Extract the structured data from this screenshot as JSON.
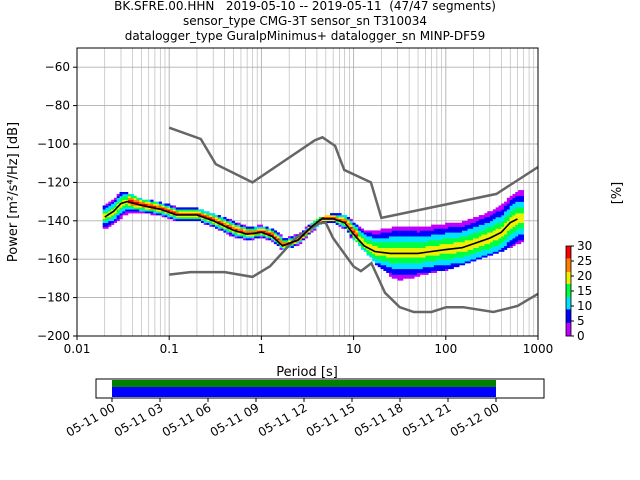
{
  "header": {
    "title_line1": "BK.SFRE.00.HHN   2019-05-10 -- 2019-05-11  (47/47 segments)",
    "title_line2": "sensor_type CMG-3T sensor_sn T310034",
    "title_line3": "datalogger_type GuralpMinimus+ datalogger_sn MINP-DF59"
  },
  "colorbar": {
    "label": "[%]",
    "ticks": [
      "0",
      "5",
      "10",
      "15",
      "20",
      "25",
      "30"
    ],
    "colors": [
      "#ffffff",
      "#c000ff",
      "#0000ff",
      "#00e0ff",
      "#00ff40",
      "#f0f000",
      "#ff8000",
      "#ff0000",
      "#b00000"
    ]
  },
  "chart_data": {
    "type": "heatmap",
    "title": "",
    "xlabel": "Period [s]",
    "ylabel": "Power [m²/s⁴/Hz] [dB]",
    "xscale": "log",
    "xlim": [
      0.01,
      1000
    ],
    "ylim": [
      -200,
      -50
    ],
    "grid": true,
    "x_ticks": [
      "0.01",
      "0.1",
      "1",
      "10",
      "100",
      "1000"
    ],
    "y_ticks": [
      "−60",
      "−80",
      "−100",
      "−120",
      "−140",
      "−160",
      "−180",
      "−200"
    ],
    "y_tick_values": [
      -60,
      -80,
      -100,
      -120,
      -140,
      -160,
      -180,
      -200
    ],
    "x_tick_values": [
      0.01,
      0.1,
      1,
      10,
      100,
      1000
    ],
    "mean_curve": {
      "period": [
        0.02,
        0.025,
        0.03,
        0.035,
        0.05,
        0.08,
        0.12,
        0.2,
        0.3,
        0.5,
        0.7,
        1.0,
        1.3,
        1.7,
        2.5,
        3.5,
        4.5,
        6,
        8,
        10,
        13,
        17,
        25,
        35,
        50,
        70,
        100,
        150,
        200,
        300,
        400,
        500,
        600
      ],
      "power": [
        -138,
        -135,
        -131,
        -130,
        -132,
        -134,
        -137,
        -137,
        -140,
        -145,
        -147,
        -146,
        -148,
        -153,
        -150,
        -143,
        -139,
        -139,
        -141,
        -147,
        -153,
        -156,
        -157,
        -157,
        -157,
        -156,
        -155,
        -154,
        -152,
        -149,
        -146,
        -141,
        -139
      ]
    },
    "nhnm": {
      "period": [
        0.1,
        0.22,
        0.32,
        0.8,
        3.8,
        4.6,
        6.3,
        7.9,
        15.4,
        20,
        354.8,
        1000
      ],
      "power": [
        -91.5,
        -97.4,
        -110.5,
        -120,
        -98,
        -96.5,
        -101,
        -113.5,
        -120,
        -138.5,
        -126,
        -112
      ]
    },
    "nlnm": {
      "period": [
        0.1,
        0.17,
        0.4,
        0.8,
        1.24,
        2.4,
        4.3,
        5,
        6,
        10,
        12,
        15.6,
        21.9,
        31.6,
        45,
        70,
        101,
        154,
        328,
        600,
        1000
      ],
      "power": [
        -168,
        -166.7,
        -166.7,
        -169.2,
        -163.7,
        -148.6,
        -141.1,
        -141.1,
        -149,
        -163.8,
        -166.2,
        -162.1,
        -177.5,
        -185,
        -187.5,
        -187.5,
        -185,
        -185,
        -187.5,
        -184.4,
        -178
      ]
    },
    "spread_band": {
      "period": [
        0.02,
        0.03,
        0.05,
        0.1,
        0.2,
        0.4,
        0.7,
        1.0,
        1.5,
        2.5,
        4,
        6,
        10,
        17,
        30,
        50,
        100,
        200,
        400,
        700
      ],
      "upper": [
        -133,
        -126,
        -130,
        -133,
        -135,
        -140,
        -143,
        -143,
        -148,
        -147,
        -140,
        -137,
        -140,
        -142,
        -145,
        -143,
        -140,
        -135,
        -128,
        -123
      ],
      "lower": [
        -145,
        -140,
        -138,
        -140,
        -142,
        -148,
        -150,
        -149,
        -155,
        -152,
        -145,
        -142,
        -150,
        -162,
        -172,
        -168,
        -165,
        -160,
        -155,
        -150
      ]
    }
  },
  "coverage": {
    "x_ticks": [
      "05-11 00",
      "05-11 03",
      "05-11 06",
      "05-11 09",
      "05-11 12",
      "05-11 15",
      "05-11 18",
      "05-11 21",
      "05-12 00"
    ],
    "start_hour": -1,
    "end_hour": 27,
    "data_start_hour": 0,
    "data_end_hour": 24,
    "data_color": "#0000ff",
    "gap_free_color": "#008000"
  }
}
